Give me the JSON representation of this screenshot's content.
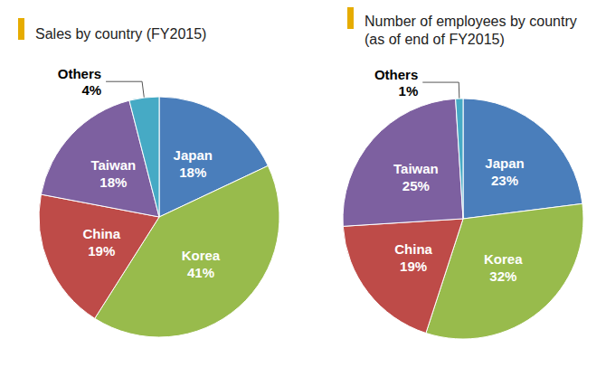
{
  "chart_data": [
    {
      "type": "pie",
      "title": "Sales by country (FY2015)",
      "categories": [
        "Japan",
        "Korea",
        "China",
        "Taiwan",
        "Others"
      ],
      "values": [
        18,
        41,
        19,
        18,
        4
      ],
      "value_labels": [
        "18%",
        "41%",
        "19%",
        "18%",
        "4%"
      ],
      "colors": [
        "#4a7ebb",
        "#98bb4c",
        "#be4b48",
        "#7d60a0",
        "#46aac5"
      ],
      "data_labels": true
    },
    {
      "type": "pie",
      "title": "Number of employees by country\n(as of end of FY2015)",
      "categories": [
        "Japan",
        "Korea",
        "China",
        "Taiwan",
        "Others"
      ],
      "values": [
        23,
        32,
        19,
        25,
        1
      ],
      "value_labels": [
        "23%",
        "32%",
        "19%",
        "25%",
        "1%"
      ],
      "colors": [
        "#4a7ebb",
        "#98bb4c",
        "#be4b48",
        "#7d60a0",
        "#46aac5"
      ],
      "data_labels": true
    }
  ]
}
